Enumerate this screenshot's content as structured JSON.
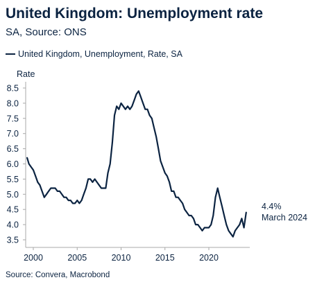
{
  "header": {
    "title": "United Kingdom: Unemployment rate",
    "subtitle": "SA, Source: ONS"
  },
  "footer": {
    "source": "Source: Convera, Macrobond"
  },
  "colors": {
    "line": "#0b2341",
    "axis": "#a8a8a8",
    "text": "#0b2341"
  },
  "chart_data": {
    "type": "line",
    "title": "United Kingdom: Unemployment rate",
    "subtitle": "SA, Source: ONS",
    "ylabel": "Rate",
    "xlabel": "",
    "ylim": [
      3.3,
      8.7
    ],
    "xlim": [
      1999.3,
      2024.6
    ],
    "yticks": [
      3.5,
      4.0,
      4.5,
      5.0,
      5.5,
      6.0,
      6.5,
      7.0,
      7.5,
      8.0,
      8.5
    ],
    "ytick_labels": [
      "3.5",
      "4.0",
      "4.5",
      "5.0",
      "5.5",
      "6.0",
      "6.5",
      "7.0",
      "7.5",
      "8.0",
      "8.5"
    ],
    "xticks": [
      2000,
      2005,
      2010,
      2015,
      2020
    ],
    "xtick_labels": [
      "2000",
      "2005",
      "2010",
      "2015",
      "2020"
    ],
    "grid": false,
    "legend_placement": "top-left",
    "series": [
      {
        "name": "United Kingdom, Unemployment, Rate, SA",
        "x": [
          1999.3,
          1999.5,
          1999.75,
          2000.0,
          2000.25,
          2000.5,
          2000.75,
          2001.0,
          2001.25,
          2001.5,
          2001.75,
          2002.0,
          2002.25,
          2002.5,
          2002.75,
          2003.0,
          2003.25,
          2003.5,
          2003.75,
          2004.0,
          2004.25,
          2004.5,
          2004.75,
          2005.0,
          2005.25,
          2005.5,
          2005.75,
          2006.0,
          2006.25,
          2006.5,
          2006.75,
          2007.0,
          2007.25,
          2007.5,
          2007.75,
          2008.0,
          2008.25,
          2008.5,
          2008.75,
          2009.0,
          2009.25,
          2009.5,
          2009.75,
          2010.0,
          2010.25,
          2010.5,
          2010.75,
          2011.0,
          2011.25,
          2011.5,
          2011.75,
          2012.0,
          2012.25,
          2012.5,
          2012.75,
          2013.0,
          2013.25,
          2013.5,
          2013.75,
          2014.0,
          2014.25,
          2014.5,
          2014.75,
          2015.0,
          2015.25,
          2015.5,
          2015.75,
          2016.0,
          2016.25,
          2016.5,
          2016.75,
          2017.0,
          2017.25,
          2017.5,
          2017.75,
          2018.0,
          2018.25,
          2018.5,
          2018.75,
          2019.0,
          2019.25,
          2019.5,
          2019.75,
          2020.0,
          2020.25,
          2020.5,
          2020.75,
          2021.0,
          2021.25,
          2021.5,
          2021.75,
          2022.0,
          2022.25,
          2022.5,
          2022.75,
          2023.0,
          2023.25,
          2023.5,
          2023.75,
          2024.0,
          2024.25
        ],
        "values": [
          6.2,
          6.0,
          5.9,
          5.8,
          5.6,
          5.4,
          5.3,
          5.1,
          4.9,
          5.0,
          5.1,
          5.2,
          5.2,
          5.2,
          5.1,
          5.1,
          5.0,
          4.9,
          4.9,
          4.8,
          4.8,
          4.7,
          4.7,
          4.8,
          4.7,
          4.8,
          5.0,
          5.2,
          5.5,
          5.5,
          5.4,
          5.5,
          5.4,
          5.3,
          5.2,
          5.2,
          5.2,
          5.7,
          6.0,
          6.7,
          7.6,
          7.9,
          7.8,
          8.0,
          7.9,
          7.8,
          7.9,
          7.8,
          7.9,
          8.1,
          8.3,
          8.4,
          8.2,
          8.0,
          7.8,
          7.8,
          7.6,
          7.5,
          7.2,
          6.9,
          6.5,
          6.1,
          5.9,
          5.7,
          5.6,
          5.4,
          5.1,
          5.1,
          4.9,
          4.9,
          4.8,
          4.7,
          4.5,
          4.4,
          4.3,
          4.3,
          4.2,
          4.0,
          4.0,
          3.9,
          3.8,
          3.9,
          3.9,
          3.9,
          4.0,
          4.3,
          4.9,
          5.2,
          4.9,
          4.6,
          4.3,
          4.0,
          3.8,
          3.7,
          3.6,
          3.8,
          3.9,
          4.0,
          4.2,
          3.9,
          4.4
        ]
      }
    ],
    "annotations": [
      {
        "text": "4.4%"
      },
      {
        "text": "March 2024"
      }
    ]
  }
}
